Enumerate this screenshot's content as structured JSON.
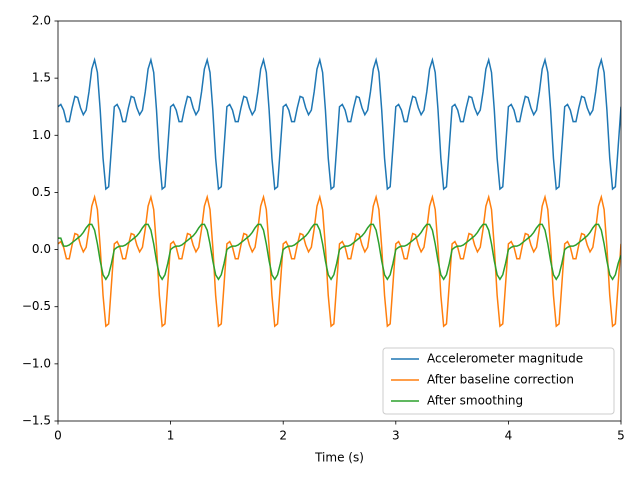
{
  "chart_data": {
    "type": "line",
    "xlabel": "Time (s)",
    "x": [
      0,
      0.025,
      0.05,
      0.075,
      0.1,
      0.125,
      0.15,
      0.175,
      0.2,
      0.225,
      0.25,
      0.275,
      0.3,
      0.325,
      0.35,
      0.375,
      0.4,
      0.425,
      0.45,
      0.475,
      0.5,
      0.525,
      0.55,
      0.575,
      0.6,
      0.625,
      0.65,
      0.675,
      0.7,
      0.725,
      0.75,
      0.775,
      0.8,
      0.825,
      0.85,
      0.875,
      0.9,
      0.925,
      0.95,
      0.975,
      1,
      1.025,
      1.05,
      1.075,
      1.1,
      1.125,
      1.15,
      1.175,
      1.2,
      1.225,
      1.25,
      1.275,
      1.3,
      1.325,
      1.35,
      1.375,
      1.4,
      1.425,
      1.45,
      1.475,
      1.5,
      1.525,
      1.55,
      1.575,
      1.6,
      1.625,
      1.65,
      1.675,
      1.7,
      1.725,
      1.75,
      1.775,
      1.8,
      1.825,
      1.85,
      1.875,
      1.9,
      1.925,
      1.95,
      1.975,
      2,
      2.025,
      2.05,
      2.075,
      2.1,
      2.125,
      2.15,
      2.175,
      2.2,
      2.225,
      2.25,
      2.275,
      2.3,
      2.325,
      2.35,
      2.375,
      2.4,
      2.425,
      2.45,
      2.475,
      2.5,
      2.525,
      2.55,
      2.575,
      2.6,
      2.625,
      2.65,
      2.675,
      2.7,
      2.725,
      2.75,
      2.775,
      2.8,
      2.825,
      2.85,
      2.875,
      2.9,
      2.925,
      2.95,
      2.975,
      3,
      3.025,
      3.05,
      3.075,
      3.1,
      3.125,
      3.15,
      3.175,
      3.2,
      3.225,
      3.25,
      3.275,
      3.3,
      3.325,
      3.35,
      3.375,
      3.4,
      3.425,
      3.45,
      3.475,
      3.5,
      3.525,
      3.55,
      3.575,
      3.6,
      3.625,
      3.65,
      3.675,
      3.7,
      3.725,
      3.75,
      3.775,
      3.8,
      3.825,
      3.85,
      3.875,
      3.9,
      3.925,
      3.95,
      3.975,
      4,
      4.025,
      4.05,
      4.075,
      4.1,
      4.125,
      4.15,
      4.175,
      4.2,
      4.225,
      4.25,
      4.275,
      4.3,
      4.325,
      4.35,
      4.375,
      4.4,
      4.425,
      4.45,
      4.475,
      4.5,
      4.525,
      4.55,
      4.575,
      4.6,
      4.625,
      4.65,
      4.675,
      4.7,
      4.725,
      4.75,
      4.775,
      4.8,
      4.825,
      4.85,
      4.875,
      4.9,
      4.925,
      4.95,
      4.975,
      5
    ],
    "series": [
      {
        "name": "Accelerometer magnitude",
        "color": "#1f77b4",
        "values": [
          1.25,
          1.27,
          1.22,
          1.12,
          1.12,
          1.24,
          1.34,
          1.33,
          1.24,
          1.18,
          1.22,
          1.38,
          1.58,
          1.66,
          1.55,
          1.22,
          0.8,
          0.53,
          0.55,
          0.9,
          1.25,
          1.27,
          1.22,
          1.12,
          1.12,
          1.24,
          1.34,
          1.33,
          1.24,
          1.18,
          1.22,
          1.38,
          1.58,
          1.66,
          1.55,
          1.22,
          0.8,
          0.53,
          0.55,
          0.9,
          1.25,
          1.27,
          1.22,
          1.12,
          1.12,
          1.24,
          1.34,
          1.33,
          1.24,
          1.18,
          1.22,
          1.38,
          1.58,
          1.66,
          1.55,
          1.22,
          0.8,
          0.53,
          0.55,
          0.9,
          1.25,
          1.27,
          1.22,
          1.12,
          1.12,
          1.24,
          1.34,
          1.33,
          1.24,
          1.18,
          1.22,
          1.38,
          1.58,
          1.66,
          1.55,
          1.22,
          0.8,
          0.53,
          0.55,
          0.9,
          1.25,
          1.27,
          1.22,
          1.12,
          1.12,
          1.24,
          1.34,
          1.33,
          1.24,
          1.18,
          1.22,
          1.38,
          1.58,
          1.66,
          1.55,
          1.22,
          0.8,
          0.53,
          0.55,
          0.9,
          1.25,
          1.27,
          1.22,
          1.12,
          1.12,
          1.24,
          1.34,
          1.33,
          1.24,
          1.18,
          1.22,
          1.38,
          1.58,
          1.66,
          1.55,
          1.22,
          0.8,
          0.53,
          0.55,
          0.9,
          1.25,
          1.27,
          1.22,
          1.12,
          1.12,
          1.24,
          1.34,
          1.33,
          1.24,
          1.18,
          1.22,
          1.38,
          1.58,
          1.66,
          1.55,
          1.22,
          0.8,
          0.53,
          0.55,
          0.9,
          1.25,
          1.27,
          1.22,
          1.12,
          1.12,
          1.24,
          1.34,
          1.33,
          1.24,
          1.18,
          1.22,
          1.38,
          1.58,
          1.66,
          1.55,
          1.22,
          0.8,
          0.53,
          0.55,
          0.9,
          1.25,
          1.27,
          1.22,
          1.12,
          1.12,
          1.24,
          1.34,
          1.33,
          1.24,
          1.18,
          1.22,
          1.38,
          1.58,
          1.66,
          1.55,
          1.22,
          0.8,
          0.53,
          0.55,
          0.9,
          1.25,
          1.27,
          1.22,
          1.12,
          1.12,
          1.24,
          1.34,
          1.33,
          1.24,
          1.18,
          1.22,
          1.38,
          1.58,
          1.66,
          1.55,
          1.22,
          0.8,
          0.53,
          0.55,
          0.9,
          1.25
        ]
      },
      {
        "name": "After baseline correction",
        "color": "#ff7f0e",
        "values": [
          0.05,
          0.07,
          0.02,
          -0.08,
          -0.08,
          0.04,
          0.14,
          0.13,
          0.04,
          -0.02,
          0.02,
          0.18,
          0.38,
          0.46,
          0.35,
          0.02,
          -0.4,
          -0.67,
          -0.65,
          -0.3,
          0.05,
          0.07,
          0.02,
          -0.08,
          -0.08,
          0.04,
          0.14,
          0.13,
          0.04,
          -0.02,
          0.02,
          0.18,
          0.38,
          0.46,
          0.35,
          0.02,
          -0.4,
          -0.67,
          -0.65,
          -0.3,
          0.05,
          0.07,
          0.02,
          -0.08,
          -0.08,
          0.04,
          0.14,
          0.13,
          0.04,
          -0.02,
          0.02,
          0.18,
          0.38,
          0.46,
          0.35,
          0.02,
          -0.4,
          -0.67,
          -0.65,
          -0.3,
          0.05,
          0.07,
          0.02,
          -0.08,
          -0.08,
          0.04,
          0.14,
          0.13,
          0.04,
          -0.02,
          0.02,
          0.18,
          0.38,
          0.46,
          0.35,
          0.02,
          -0.4,
          -0.67,
          -0.65,
          -0.3,
          0.05,
          0.07,
          0.02,
          -0.08,
          -0.08,
          0.04,
          0.14,
          0.13,
          0.04,
          -0.02,
          0.02,
          0.18,
          0.38,
          0.46,
          0.35,
          0.02,
          -0.4,
          -0.67,
          -0.65,
          -0.3,
          0.05,
          0.07,
          0.02,
          -0.08,
          -0.08,
          0.04,
          0.14,
          0.13,
          0.04,
          -0.02,
          0.02,
          0.18,
          0.38,
          0.46,
          0.35,
          0.02,
          -0.4,
          -0.67,
          -0.65,
          -0.3,
          0.05,
          0.07,
          0.02,
          -0.08,
          -0.08,
          0.04,
          0.14,
          0.13,
          0.04,
          -0.02,
          0.02,
          0.18,
          0.38,
          0.46,
          0.35,
          0.02,
          -0.4,
          -0.67,
          -0.65,
          -0.3,
          0.05,
          0.07,
          0.02,
          -0.08,
          -0.08,
          0.04,
          0.14,
          0.13,
          0.04,
          -0.02,
          0.02,
          0.18,
          0.38,
          0.46,
          0.35,
          0.02,
          -0.4,
          -0.67,
          -0.65,
          -0.3,
          0.05,
          0.07,
          0.02,
          -0.08,
          -0.08,
          0.04,
          0.14,
          0.13,
          0.04,
          -0.02,
          0.02,
          0.18,
          0.38,
          0.46,
          0.35,
          0.02,
          -0.4,
          -0.67,
          -0.65,
          -0.3,
          0.05,
          0.07,
          0.02,
          -0.08,
          -0.08,
          0.04,
          0.14,
          0.13,
          0.04,
          -0.02,
          0.02,
          0.18,
          0.38,
          0.46,
          0.35,
          0.02,
          -0.4,
          -0.67,
          -0.65,
          -0.3,
          0.05
        ]
      },
      {
        "name": "After smoothing",
        "color": "#2ca02c",
        "values": [
          0.1,
          0.1,
          0.03,
          0.03,
          0.04,
          0.06,
          0.08,
          0.1,
          0.12,
          0.15,
          0.19,
          0.22,
          0.22,
          0.17,
          0.05,
          -0.1,
          -0.22,
          -0.26,
          -0.22,
          -0.12,
          0.0,
          0.02,
          0.03,
          0.03,
          0.04,
          0.06,
          0.08,
          0.1,
          0.12,
          0.15,
          0.19,
          0.22,
          0.22,
          0.17,
          0.05,
          -0.1,
          -0.22,
          -0.26,
          -0.22,
          -0.12,
          0.0,
          0.02,
          0.03,
          0.03,
          0.04,
          0.06,
          0.08,
          0.1,
          0.12,
          0.15,
          0.19,
          0.22,
          0.22,
          0.17,
          0.05,
          -0.1,
          -0.22,
          -0.26,
          -0.22,
          -0.12,
          0.0,
          0.02,
          0.03,
          0.03,
          0.04,
          0.06,
          0.08,
          0.1,
          0.12,
          0.15,
          0.19,
          0.22,
          0.22,
          0.17,
          0.05,
          -0.1,
          -0.22,
          -0.26,
          -0.22,
          -0.12,
          0.0,
          0.02,
          0.03,
          0.03,
          0.04,
          0.06,
          0.08,
          0.1,
          0.12,
          0.15,
          0.19,
          0.22,
          0.22,
          0.17,
          0.05,
          -0.1,
          -0.22,
          -0.26,
          -0.22,
          -0.12,
          0.0,
          0.02,
          0.03,
          0.03,
          0.04,
          0.06,
          0.08,
          0.1,
          0.12,
          0.15,
          0.19,
          0.22,
          0.22,
          0.17,
          0.05,
          -0.1,
          -0.22,
          -0.26,
          -0.22,
          -0.12,
          0.0,
          0.02,
          0.03,
          0.03,
          0.04,
          0.06,
          0.08,
          0.1,
          0.12,
          0.15,
          0.19,
          0.22,
          0.22,
          0.17,
          0.05,
          -0.1,
          -0.22,
          -0.26,
          -0.22,
          -0.12,
          0.0,
          0.02,
          0.03,
          0.03,
          0.04,
          0.06,
          0.08,
          0.1,
          0.12,
          0.15,
          0.19,
          0.22,
          0.22,
          0.17,
          0.05,
          -0.1,
          -0.22,
          -0.26,
          -0.22,
          -0.12,
          0.0,
          0.02,
          0.03,
          0.03,
          0.04,
          0.06,
          0.08,
          0.1,
          0.12,
          0.15,
          0.19,
          0.22,
          0.22,
          0.17,
          0.05,
          -0.1,
          -0.22,
          -0.26,
          -0.22,
          -0.12,
          0.0,
          0.02,
          0.03,
          0.03,
          0.04,
          0.06,
          0.08,
          0.1,
          0.12,
          0.15,
          0.19,
          0.22,
          0.22,
          0.17,
          0.05,
          -0.1,
          -0.22,
          -0.26,
          -0.22,
          -0.12,
          -0.05
        ]
      }
    ],
    "xlim": [
      0,
      5
    ],
    "xticks": [
      0,
      1,
      2,
      3,
      4,
      5
    ],
    "ylim": [
      -1.5,
      2.0
    ],
    "yticks": [
      {
        "value": -1.5,
        "label": "−1.5"
      },
      {
        "value": -1.0,
        "label": "−1.0"
      },
      {
        "value": -0.5,
        "label": "−0.5"
      },
      {
        "value": 0.0,
        "label": "0.0"
      },
      {
        "value": 0.5,
        "label": "0.5"
      },
      {
        "value": 1.0,
        "label": "1.0"
      },
      {
        "value": 1.5,
        "label": "1.5"
      },
      {
        "value": 2.0,
        "label": "2.0"
      }
    ],
    "grid": false,
    "legend": "lower right"
  }
}
